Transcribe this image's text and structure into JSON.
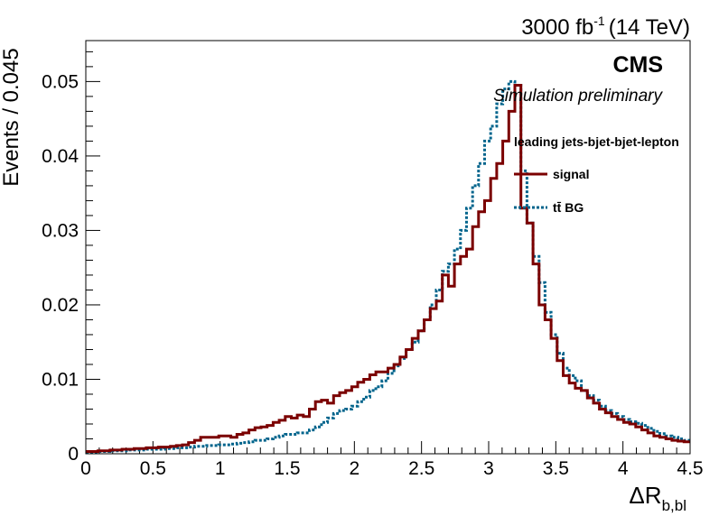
{
  "chart_data": {
    "type": "line",
    "luminosity": "3000 fb",
    "luminosity_sup": "-1",
    "energy": "(14 TeV)",
    "experiment": "CMS",
    "status": "Simulation preliminary",
    "xlabel_main": "ΔR",
    "xlabel_sub": "b,bl",
    "ylabel": "Events / 0.045",
    "xlim": [
      0,
      4.5
    ],
    "ylim": [
      0,
      0.0555
    ],
    "xticks": [
      0,
      0.5,
      1,
      1.5,
      2,
      2.5,
      3,
      3.5,
      4,
      4.5
    ],
    "xtick_labels": [
      "0",
      "0.5",
      "1",
      "1.5",
      "2",
      "2.5",
      "3",
      "3.5",
      "4",
      "4.5"
    ],
    "yticks": [
      0,
      0.01,
      0.02,
      0.03,
      0.04,
      0.05
    ],
    "ytick_labels": [
      "0",
      "0.01",
      "0.02",
      "0.03",
      "0.04",
      "0.05"
    ],
    "bin_width": 0.045,
    "legend": {
      "header": "leading jets-bjet-bjet-lepton",
      "placement": "top-right"
    },
    "series": [
      {
        "name": "signal",
        "color": "#7b0000",
        "style": "solid",
        "values": [
          0.0003,
          0.0003,
          0.0004,
          0.0004,
          0.0005,
          0.0005,
          0.0006,
          0.0006,
          0.0007,
          0.0007,
          0.0008,
          0.0008,
          0.0009,
          0.0009,
          0.001,
          0.0011,
          0.0012,
          0.0015,
          0.0018,
          0.0022,
          0.0022,
          0.0022,
          0.0024,
          0.0024,
          0.0022,
          0.0026,
          0.0028,
          0.0032,
          0.0035,
          0.0036,
          0.0038,
          0.0042,
          0.0045,
          0.005,
          0.0048,
          0.0052,
          0.005,
          0.006,
          0.007,
          0.0072,
          0.0068,
          0.0078,
          0.0082,
          0.0085,
          0.009,
          0.0096,
          0.01,
          0.0106,
          0.011,
          0.011,
          0.0115,
          0.012,
          0.013,
          0.014,
          0.0155,
          0.0165,
          0.018,
          0.0195,
          0.0205,
          0.024,
          0.0225,
          0.0255,
          0.0265,
          0.0275,
          0.0305,
          0.0325,
          0.034,
          0.037,
          0.039,
          0.042,
          0.046,
          0.0495,
          0.033,
          0.031,
          0.0255,
          0.02,
          0.018,
          0.0155,
          0.0125,
          0.0105,
          0.0095,
          0.0088,
          0.0085,
          0.0075,
          0.0068,
          0.006,
          0.0055,
          0.005,
          0.0046,
          0.0042,
          0.004,
          0.0036,
          0.0032,
          0.0028,
          0.0024,
          0.0022,
          0.002,
          0.0018,
          0.0017,
          0.0016
        ]
      },
      {
        "name": "tt̄ BG",
        "color": "#00648c",
        "style": "dotted",
        "values": [
          0.0002,
          0.0002,
          0.0003,
          0.0003,
          0.0004,
          0.0004,
          0.0004,
          0.0005,
          0.0005,
          0.0005,
          0.0006,
          0.0006,
          0.0006,
          0.0007,
          0.0007,
          0.0008,
          0.0008,
          0.0009,
          0.001,
          0.001,
          0.0011,
          0.0011,
          0.0012,
          0.0012,
          0.0013,
          0.0014,
          0.0015,
          0.0016,
          0.0018,
          0.0018,
          0.002,
          0.0022,
          0.0024,
          0.0026,
          0.0026,
          0.0028,
          0.0028,
          0.0032,
          0.0036,
          0.0042,
          0.0048,
          0.0054,
          0.0058,
          0.006,
          0.0064,
          0.007,
          0.0076,
          0.0085,
          0.009,
          0.0098,
          0.0108,
          0.0118,
          0.0128,
          0.014,
          0.015,
          0.0165,
          0.018,
          0.02,
          0.022,
          0.0245,
          0.0255,
          0.0275,
          0.03,
          0.033,
          0.036,
          0.039,
          0.042,
          0.044,
          0.047,
          0.049,
          0.05,
          0.0495,
          0.038,
          0.031,
          0.0265,
          0.023,
          0.019,
          0.016,
          0.0135,
          0.0115,
          0.0105,
          0.0098,
          0.0085,
          0.0078,
          0.0072,
          0.0064,
          0.0058,
          0.0054,
          0.005,
          0.0046,
          0.0043,
          0.0041,
          0.0038,
          0.0034,
          0.003,
          0.0027,
          0.0024,
          0.0022,
          0.002,
          0.0018
        ]
      }
    ]
  }
}
